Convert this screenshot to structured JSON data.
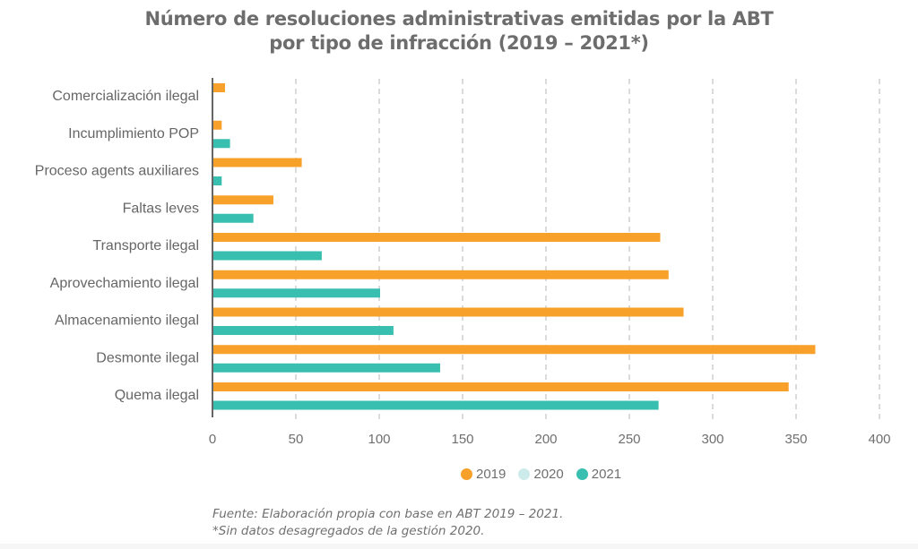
{
  "chart_data": {
    "type": "bar",
    "orientation": "horizontal",
    "title": "Número de resoluciones administrativas emitidas por la ABT por tipo de infracción (2019 – 2021*)",
    "title_lines": [
      "Número de resoluciones administrativas emitidas por la ABT",
      "por tipo de infracción (2019 – 2021*)"
    ],
    "categories": [
      "Comercialización ilegal",
      "Incumplimiento POP",
      "Proceso agents auxiliares",
      "Faltas leves",
      "Transporte ilegal",
      "Aprovechamiento ilegal",
      "Almacenamiento ilegal",
      "Desmonte ilegal",
      "Quema ilegal"
    ],
    "series": [
      {
        "name": "2019",
        "color": "#F7A02A",
        "values": [
          7,
          5,
          53,
          36,
          268,
          273,
          282,
          361,
          345
        ]
      },
      {
        "name": "2020",
        "color": "#CDEBEA",
        "values": [
          null,
          null,
          null,
          null,
          null,
          null,
          null,
          null,
          null
        ]
      },
      {
        "name": "2021",
        "color": "#38BFB0",
        "values": [
          null,
          10,
          5,
          24,
          65,
          100,
          108,
          136,
          267
        ]
      }
    ],
    "xlabel": "",
    "ylabel": "",
    "xlim": [
      0,
      400
    ],
    "xticks": [
      0,
      50,
      100,
      150,
      200,
      250,
      300,
      350,
      400
    ],
    "grid": "vertical dashed",
    "legend_position": "bottom",
    "footnotes": [
      "Fuente: Elaboración propia con base en ABT 2019 – 2021.",
      "*Sin datos desagregados de la gestión 2020."
    ]
  }
}
